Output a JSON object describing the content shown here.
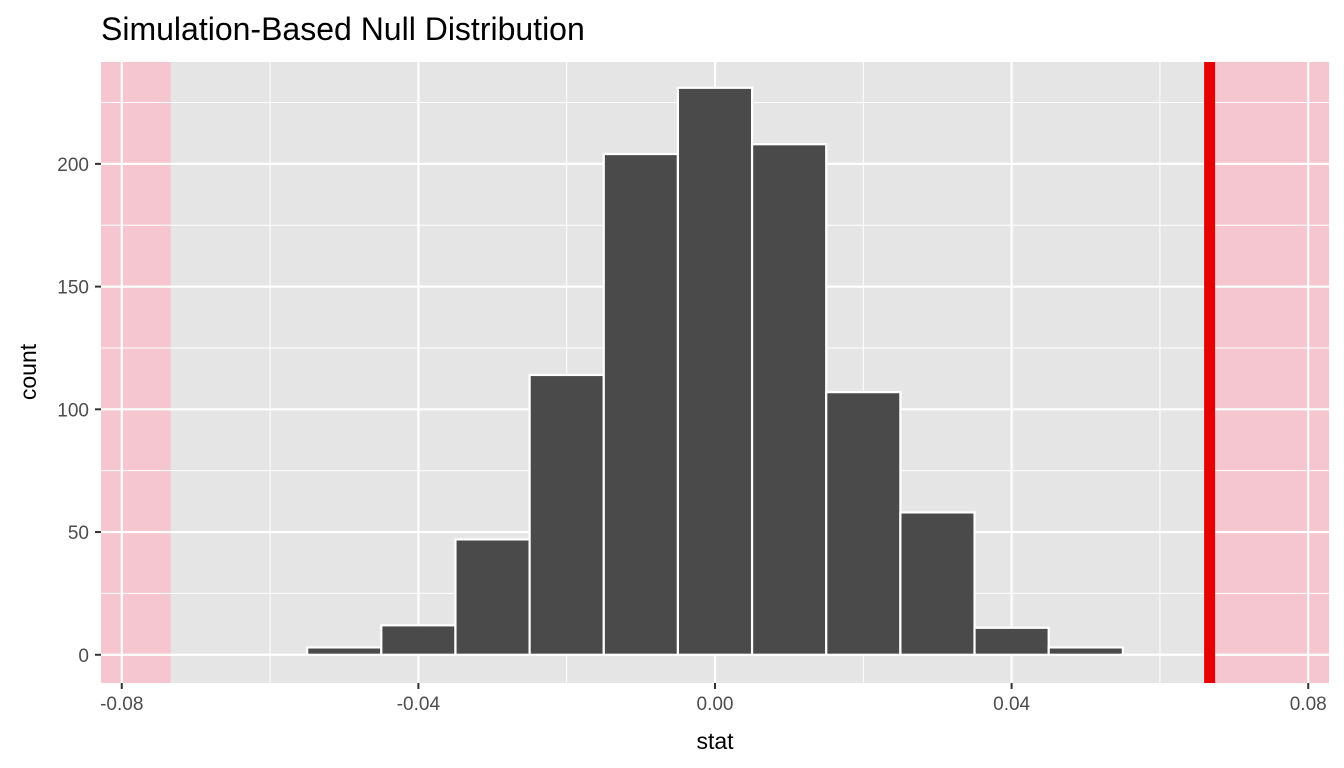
{
  "chart_data": {
    "type": "bar",
    "title": "Simulation-Based Null Distribution",
    "xlabel": "stat",
    "ylabel": "count",
    "xlim": [
      -0.0828,
      0.0828
    ],
    "ylim": [
      -11.5,
      241.5
    ],
    "x_ticks": [
      {
        "value": -0.08,
        "label": "-0.08"
      },
      {
        "value": -0.04,
        "label": "-0.04"
      },
      {
        "value": 0.0,
        "label": "0.00"
      },
      {
        "value": 0.04,
        "label": "0.04"
      },
      {
        "value": 0.08,
        "label": "0.08"
      }
    ],
    "y_ticks": [
      {
        "value": 0,
        "label": "0"
      },
      {
        "value": 50,
        "label": "50"
      },
      {
        "value": 100,
        "label": "100"
      },
      {
        "value": 150,
        "label": "150"
      },
      {
        "value": 200,
        "label": "200"
      }
    ],
    "bin_width": 0.01,
    "bins": [
      {
        "x": -0.08,
        "count": 0
      },
      {
        "x": -0.07,
        "count": 0
      },
      {
        "x": -0.06,
        "count": 0
      },
      {
        "x": -0.05,
        "count": 3
      },
      {
        "x": -0.04,
        "count": 12
      },
      {
        "x": -0.03,
        "count": 47
      },
      {
        "x": -0.02,
        "count": 114
      },
      {
        "x": -0.01,
        "count": 204
      },
      {
        "x": 0.0,
        "count": 231
      },
      {
        "x": 0.01,
        "count": 208
      },
      {
        "x": 0.02,
        "count": 107
      },
      {
        "x": 0.03,
        "count": 58
      },
      {
        "x": 0.04,
        "count": 11
      },
      {
        "x": 0.05,
        "count": 3
      }
    ],
    "observed_stat": 0.0667,
    "shaded_regions": [
      {
        "from": -0.0828,
        "to": -0.0734
      },
      {
        "from": 0.0667,
        "to": 0.0828
      }
    ],
    "grid": true,
    "colors": {
      "panel": "#e5e5e5",
      "grid": "#ffffff",
      "bar_fill": "#4a4a4a",
      "bar_outline": "#ffffff",
      "shade": "#f5c6cf",
      "observed_line": "#e60000"
    }
  }
}
